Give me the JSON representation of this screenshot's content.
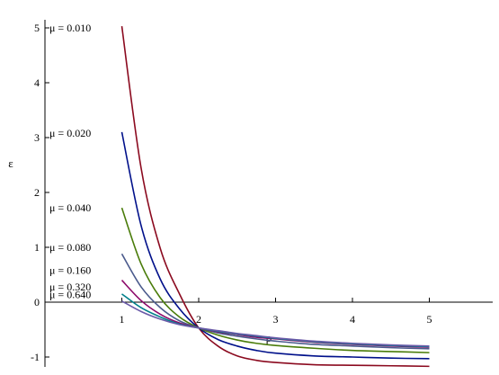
{
  "chart_data": {
    "type": "line",
    "title": "",
    "xlabel": "ρ",
    "ylabel": "ε",
    "xlim": [
      0,
      5.8
    ],
    "ylim": [
      -1.15,
      5.1
    ],
    "x_ticks": [
      "1",
      "2",
      "3",
      "4",
      "5"
    ],
    "y_ticks": [
      "-1",
      "1",
      "2",
      "3",
      "4",
      "5"
    ],
    "origin_label": "0",
    "grid": false,
    "x": [
      1.0,
      1.25,
      1.5,
      1.75,
      2.0,
      2.25,
      2.5,
      2.75,
      3.0,
      3.5,
      4.0,
      4.5,
      5.0
    ],
    "series": [
      {
        "name": "μ = 0.010",
        "label_y": 5.0,
        "color": "#8b0a1f",
        "values": [
          5.03,
          2.45,
          0.98,
          0.15,
          -0.47,
          -0.8,
          -0.98,
          -1.06,
          -1.1,
          -1.14,
          -1.15,
          -1.16,
          -1.17
        ]
      },
      {
        "name": "μ = 0.020",
        "label_y": 3.08,
        "color": "#00108a",
        "values": [
          3.1,
          1.4,
          0.42,
          -0.12,
          -0.47,
          -0.68,
          -0.8,
          -0.88,
          -0.93,
          -0.98,
          -1.0,
          -1.02,
          -1.03
        ]
      },
      {
        "name": "μ = 0.040",
        "label_y": 1.72,
        "color": "#4a7c0a",
        "values": [
          1.72,
          0.7,
          0.08,
          -0.27,
          -0.47,
          -0.6,
          -0.69,
          -0.75,
          -0.79,
          -0.84,
          -0.88,
          -0.9,
          -0.92
        ]
      },
      {
        "name": "μ = 0.080",
        "label_y": 1.0,
        "color": "#4a5a8c",
        "values": [
          0.88,
          0.28,
          -0.1,
          -0.34,
          -0.47,
          -0.56,
          -0.62,
          -0.67,
          -0.71,
          -0.77,
          -0.8,
          -0.83,
          -0.85
        ]
      },
      {
        "name": "μ = 0.160",
        "label_y": 0.58,
        "color": "#8c0a6a",
        "values": [
          0.4,
          0.03,
          -0.22,
          -0.38,
          -0.47,
          -0.54,
          -0.59,
          -0.64,
          -0.67,
          -0.73,
          -0.77,
          -0.8,
          -0.82
        ]
      },
      {
        "name": "μ = 0.320",
        "label_y": 0.28,
        "color": "#00808a",
        "values": [
          0.15,
          -0.1,
          -0.27,
          -0.4,
          -0.47,
          -0.53,
          -0.58,
          -0.62,
          -0.66,
          -0.72,
          -0.76,
          -0.79,
          -0.81
        ]
      },
      {
        "name": "μ = 0.640",
        "label_y": 0.14,
        "color": "#6a5aa8",
        "values": [
          0.02,
          -0.17,
          -0.31,
          -0.41,
          -0.47,
          -0.52,
          -0.57,
          -0.61,
          -0.65,
          -0.71,
          -0.75,
          -0.78,
          -0.8
        ]
      }
    ]
  }
}
